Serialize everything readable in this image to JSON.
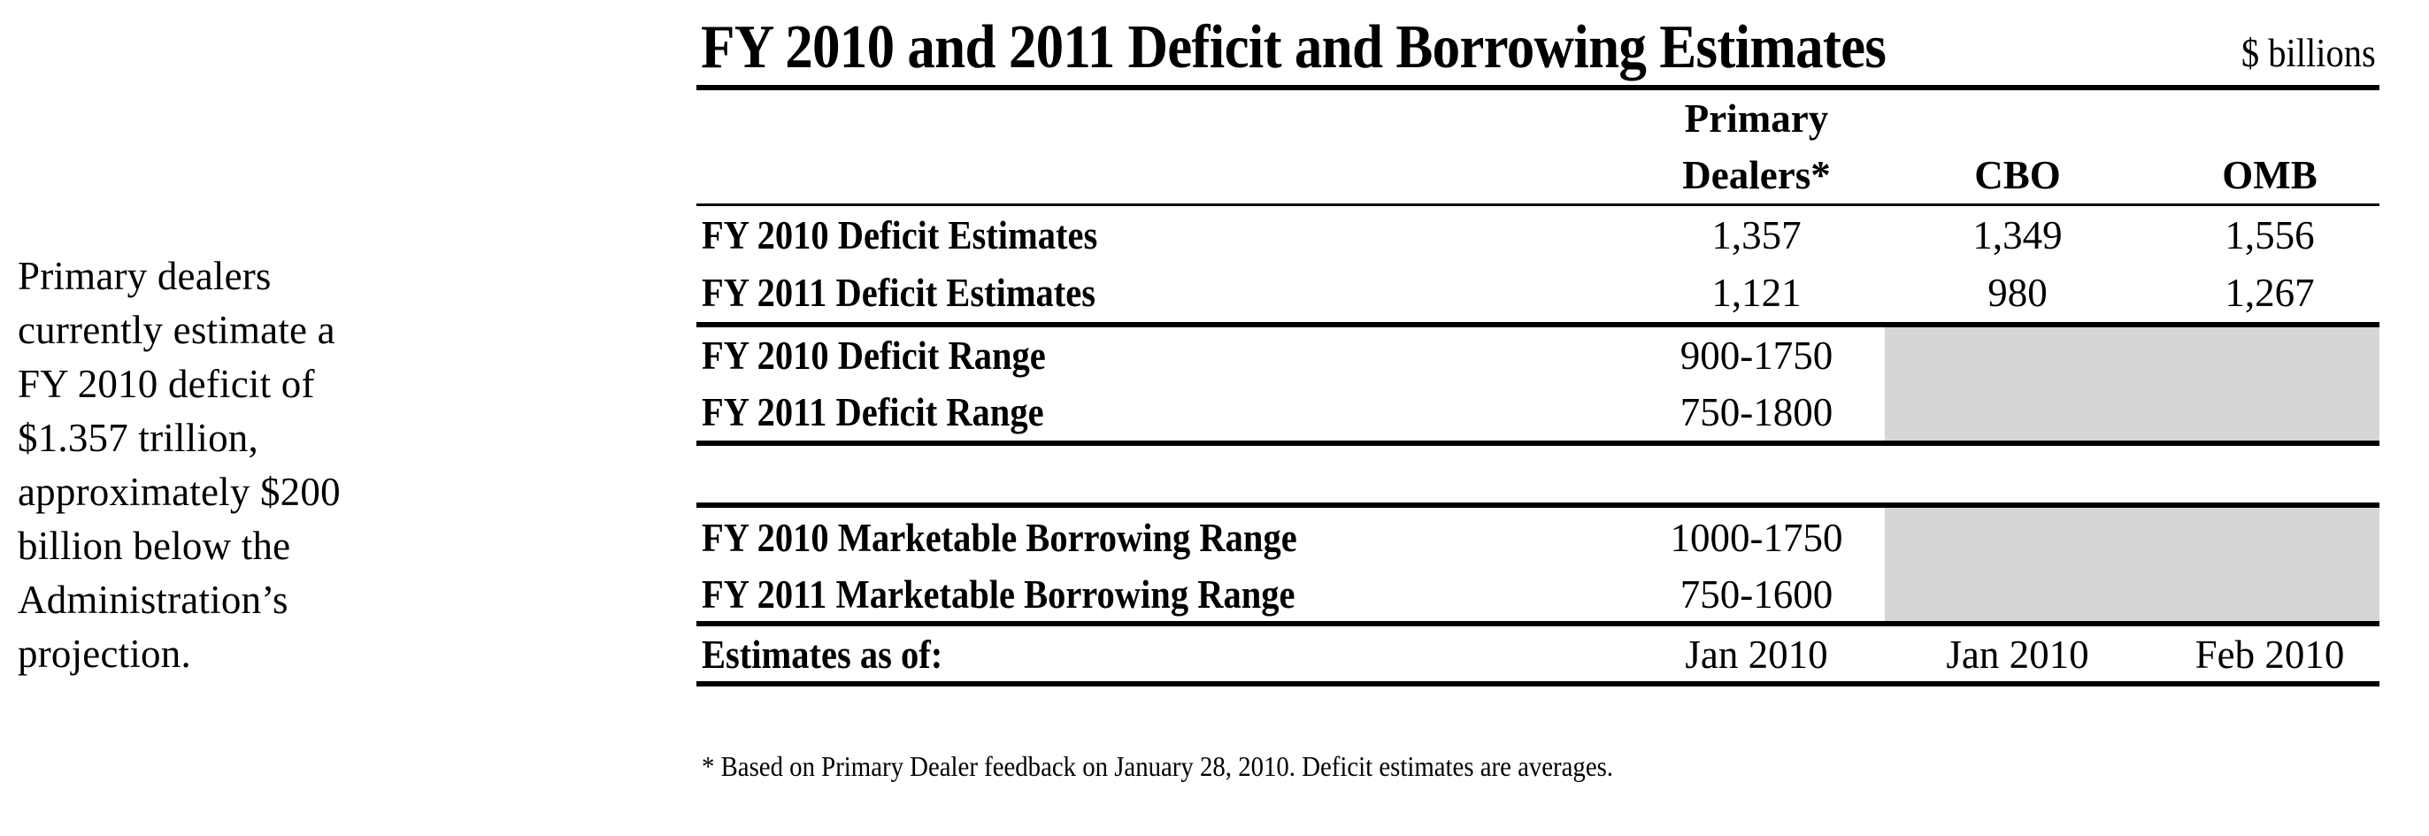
{
  "side_note": {
    "lines": [
      "Primary dealers",
      "currently estimate a",
      "FY 2010 deficit of",
      "$1.357 trillion,",
      "approximately $200",
      "billion below the",
      "Administration’s",
      "projection."
    ]
  },
  "header": {
    "title": "FY 2010 and 2011 Deficit and Borrowing Estimates",
    "units": "$ billions"
  },
  "table": {
    "columns": {
      "primary_dealers_line1": "Primary",
      "primary_dealers_line2": "Dealers*",
      "cbo": "CBO",
      "omb": "OMB"
    },
    "rows": [
      {
        "label": "FY 2010 Deficit Estimates",
        "primary_dealers": "1,357",
        "cbo": "1,349",
        "omb": "1,556"
      },
      {
        "label": "FY 2011 Deficit Estimates",
        "primary_dealers": "1,121",
        "cbo": "980",
        "omb": "1,267"
      },
      {
        "label": "FY 2010 Deficit Range",
        "primary_dealers": "900-1750",
        "cbo": "",
        "omb": ""
      },
      {
        "label": "FY 2011 Deficit Range",
        "primary_dealers": "750-1800",
        "cbo": "",
        "omb": ""
      },
      {
        "label": "FY 2010 Marketable Borrowing Range",
        "primary_dealers": "1000-1750",
        "cbo": "",
        "omb": ""
      },
      {
        "label": "FY 2011 Marketable Borrowing Range",
        "primary_dealers": "750-1600",
        "cbo": "",
        "omb": ""
      },
      {
        "label": "Estimates as of:",
        "primary_dealers": "Jan 2010",
        "cbo": "Jan 2010",
        "omb": "Feb 2010"
      }
    ]
  },
  "footnote": "* Based on Primary Dealer feedback on January 28, 2010. Deficit estimates are averages.",
  "colors": {
    "shade": "#d6d6d6",
    "text": "#000000"
  }
}
